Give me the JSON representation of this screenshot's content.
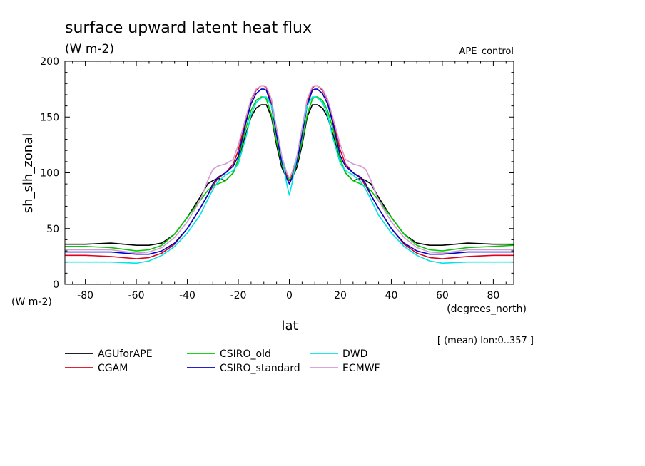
{
  "chart_data": {
    "type": "line",
    "title": "surface upward latent heat flux",
    "units": "(W m-2)",
    "experiment": "APE_control",
    "ylabel": "sh_slh_zonal",
    "yunits": "(W m-2)",
    "xlabel": "lat",
    "xunits": "(degrees_north)",
    "footnote": "[ (mean) lon:0..357 ]",
    "xlim": [
      -88,
      88
    ],
    "ylim": [
      0,
      200
    ],
    "xticks": [
      -80,
      -60,
      -40,
      -20,
      0,
      20,
      40,
      60,
      80
    ],
    "yticks": [
      0,
      50,
      100,
      150,
      200
    ],
    "grid": false,
    "legend_position": "below",
    "x": [
      -88,
      -80,
      -70,
      -60,
      -55,
      -50,
      -45,
      -40,
      -35,
      -32,
      -30,
      -28,
      -25,
      -22,
      -20,
      -17,
      -15,
      -13,
      -11,
      -10,
      -9,
      -7,
      -5,
      -3,
      -1,
      0,
      1,
      3,
      5,
      7,
      9,
      10,
      11,
      13,
      15,
      17,
      20,
      22,
      25,
      28,
      30,
      32,
      35,
      40,
      45,
      50,
      55,
      60,
      70,
      80,
      88
    ],
    "series": [
      {
        "name": "AGUforAPE",
        "color": "#000000",
        "values": [
          36,
          36,
          37,
          35,
          35,
          37,
          45,
          60,
          78,
          90,
          93,
          95,
          93,
          100,
          112,
          135,
          150,
          158,
          161,
          161,
          161,
          150,
          125,
          105,
          95,
          93,
          95,
          105,
          125,
          150,
          161,
          161,
          161,
          158,
          150,
          135,
          112,
          100,
          93,
          95,
          93,
          90,
          78,
          60,
          45,
          37,
          35,
          35,
          37,
          36,
          36
        ]
      },
      {
        "name": "CGAM",
        "color": "#e0001a",
        "values": [
          26,
          26,
          25,
          23,
          24,
          28,
          36,
          50,
          68,
          80,
          88,
          95,
          100,
          108,
          120,
          148,
          165,
          174,
          178,
          178,
          176,
          162,
          135,
          112,
          98,
          93,
          98,
          112,
          135,
          162,
          176,
          178,
          178,
          174,
          165,
          148,
          120,
          108,
          100,
          95,
          88,
          80,
          68,
          50,
          36,
          28,
          24,
          23,
          25,
          26,
          26
        ]
      },
      {
        "name": "CSIRO_old",
        "color": "#00cc00",
        "values": [
          34,
          34,
          33,
          30,
          31,
          35,
          45,
          60,
          75,
          84,
          88,
          90,
          93,
          100,
          112,
          140,
          156,
          165,
          168,
          168,
          166,
          152,
          128,
          108,
          96,
          94,
          96,
          108,
          128,
          152,
          166,
          168,
          168,
          165,
          156,
          140,
          112,
          100,
          93,
          90,
          88,
          84,
          75,
          60,
          45,
          35,
          31,
          30,
          33,
          34,
          35
        ]
      },
      {
        "name": "CSIRO_standard",
        "color": "#0000cc",
        "values": [
          29,
          29,
          29,
          27,
          27,
          30,
          37,
          50,
          68,
          80,
          90,
          96,
          100,
          106,
          115,
          145,
          162,
          171,
          175,
          175,
          174,
          160,
          134,
          110,
          95,
          90,
          95,
          110,
          134,
          160,
          174,
          175,
          175,
          171,
          162,
          145,
          115,
          106,
          100,
          96,
          90,
          80,
          68,
          50,
          37,
          30,
          27,
          27,
          29,
          29,
          29
        ]
      },
      {
        "name": "DWD",
        "color": "#00e5e5",
        "values": [
          20,
          20,
          20,
          19,
          21,
          26,
          34,
          46,
          62,
          76,
          85,
          92,
          98,
          102,
          108,
          132,
          152,
          163,
          167,
          168,
          168,
          160,
          140,
          115,
          90,
          80,
          90,
          115,
          140,
          160,
          168,
          168,
          167,
          163,
          152,
          132,
          108,
          102,
          98,
          92,
          85,
          76,
          62,
          46,
          34,
          26,
          21,
          19,
          20,
          20,
          20
        ]
      },
      {
        "name": "ECMWF",
        "color": "#d49ad4",
        "values": [
          31,
          31,
          31,
          28,
          29,
          33,
          42,
          56,
          75,
          93,
          103,
          106,
          108,
          112,
          125,
          150,
          166,
          175,
          178,
          178,
          177,
          166,
          140,
          115,
          100,
          95,
          100,
          115,
          140,
          166,
          177,
          178,
          178,
          175,
          166,
          150,
          125,
          112,
          108,
          106,
          103,
          93,
          75,
          56,
          42,
          33,
          29,
          28,
          31,
          31,
          31
        ]
      }
    ]
  }
}
